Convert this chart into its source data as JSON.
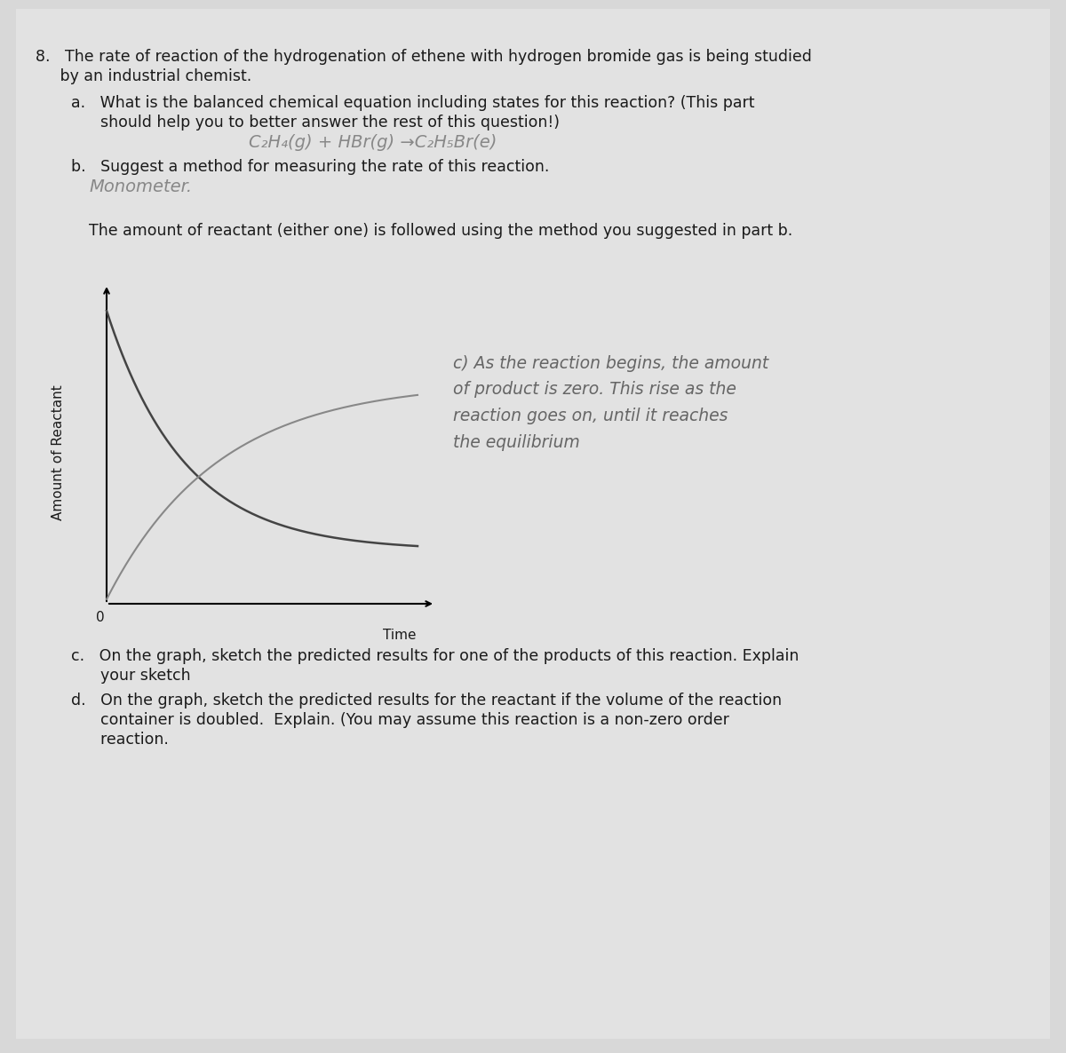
{
  "page_bg": "#d8d8d8",
  "paper_bg": "#e2e2e2",
  "text_dark": "#1a1a1a",
  "text_gray": "#555555",
  "text_hand": "#888888",
  "line_color1": "#444444",
  "line_color2": "#888888",
  "font_main": 12.5,
  "font_hand": 14,
  "font_small": 11,
  "title_line1": "8.   The rate of reaction of the hydrogenation of ethene with hydrogen bromide gas is being studied",
  "title_line2": "     by an industrial chemist.",
  "part_a_line1": "a.   What is the balanced chemical equation including states for this reaction? (This part",
  "part_a_line2": "      should help you to better answer the rest of this question!)",
  "part_a_hand": "C₂H₄(g) + HBr(g) →C₂H₅Br(e)",
  "part_b_line1": "b.   Suggest a method for measuring the rate of this reaction.",
  "part_b_hand": "Monometer.",
  "middle_text": "The amount of reactant (either one) is followed using the method you suggested in part b.",
  "graph_ylabel": "Amount of Reactant",
  "graph_xlabel": "Time",
  "annot_c": "c) As the reaction begins, the amount\nof product is zero. This rise as the\nreaction goes on, until it reaches\nthe equilibrium",
  "part_c_line1": "c.   On the graph, sketch the predicted results for one of the products of this reaction. Explain",
  "part_c_line2": "      your sketch",
  "part_d_line1": "d.   On the graph, sketch the predicted results for the reactant if the volume of the reaction",
  "part_d_line2": "      container is doubled.  Explain. (You may assume this reaction is a non-zero order",
  "part_d_line3": "      reaction."
}
